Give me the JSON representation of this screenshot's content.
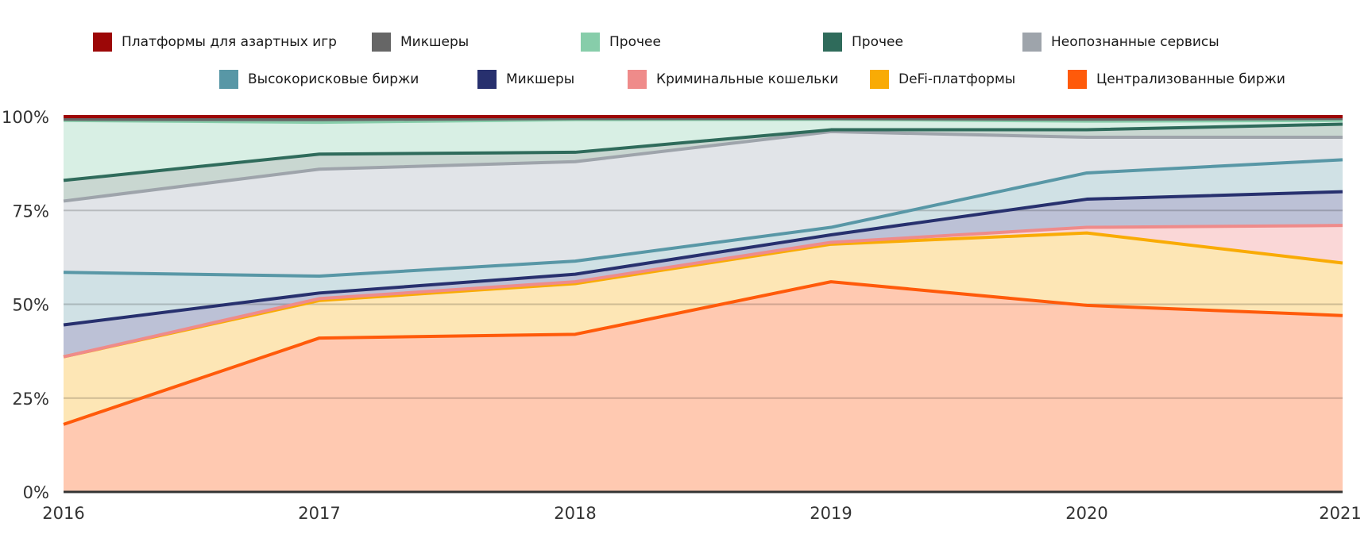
{
  "chart_data": {
    "type": "area",
    "stacked": true,
    "x": [
      "2016",
      "2017",
      "2018",
      "2019",
      "2020",
      "2021"
    ],
    "ylim": [
      0,
      100
    ],
    "yticks": [
      "0%",
      "25%",
      "50%",
      "75%",
      "100%"
    ],
    "grid": true,
    "legend_position": "top",
    "series": [
      {
        "name": "Централизованные биржи",
        "color": "#ff5a0a",
        "fill": "#ffc9b1",
        "cumulative": [
          18,
          41,
          42,
          56,
          49.7,
          47
        ]
      },
      {
        "name": "DeFi-платформы",
        "color": "#f9ab05",
        "fill": "#fde6b5",
        "cumulative": [
          36,
          51,
          55.5,
          66,
          69,
          61
        ]
      },
      {
        "name": "Криминальные кошельки",
        "color": "#ef8b8a",
        "fill": "#fad7d7",
        "cumulative": [
          36,
          51.5,
          56,
          66.5,
          70.5,
          71
        ]
      },
      {
        "name": "Микшеры",
        "color": "#27306e",
        "fill": "#bcc1d6",
        "cumulative": [
          44.5,
          53,
          58,
          68.5,
          78,
          80
        ]
      },
      {
        "name": "Высокорисковые биржи",
        "color": "#5897a6",
        "fill": "#d0e1e5",
        "cumulative": [
          58.5,
          57.5,
          61.5,
          70.5,
          85,
          88.5
        ]
      },
      {
        "name": "Неопознанные сервисы",
        "color": "#9ea4ab",
        "fill": "#e1e4e8",
        "cumulative": [
          77.5,
          86,
          88,
          96,
          94.5,
          94.5
        ]
      },
      {
        "name": "Прочее",
        "color": "#2f6b5b",
        "fill": "#c9d7d1",
        "cumulative": [
          83,
          90,
          90.5,
          96.5,
          96.5,
          98
        ]
      },
      {
        "name": "Прочее",
        "color": "#87cdaa",
        "fill": "#d8efe4",
        "cumulative": [
          99,
          98.5,
          99.2,
          99.3,
          98.8,
          99
        ]
      },
      {
        "name": "Микшеры",
        "color": "#666666",
        "fill": "#c9c9c9",
        "cumulative": [
          99.3,
          99.2,
          99.5,
          99.5,
          99.3,
          99.5
        ]
      },
      {
        "name": "Платформы для азартных игр",
        "color": "#9c0707",
        "fill": "#e2c2c2",
        "cumulative": [
          100,
          100,
          100,
          100,
          100,
          100
        ]
      }
    ],
    "legend": [
      {
        "label": "Платформы для азартных игр",
        "color": "#9c0707"
      },
      {
        "label": "Микшеры",
        "color": "#666666"
      },
      {
        "label": "Прочее",
        "color": "#87cdaa"
      },
      {
        "label": "Прочее",
        "color": "#2f6b5b"
      },
      {
        "label": "Неопознанные сервисы",
        "color": "#9ea4ab"
      },
      {
        "label": "Высокорисковые биржи",
        "color": "#5897a6"
      },
      {
        "label": "Микшеры",
        "color": "#27306e"
      },
      {
        "label": "Криминальные кошельки",
        "color": "#ef8b8a"
      },
      {
        "label": "DeFi-платформы",
        "color": "#f9ab05"
      },
      {
        "label": "Централизованные биржи",
        "color": "#ff5a0a"
      }
    ]
  }
}
